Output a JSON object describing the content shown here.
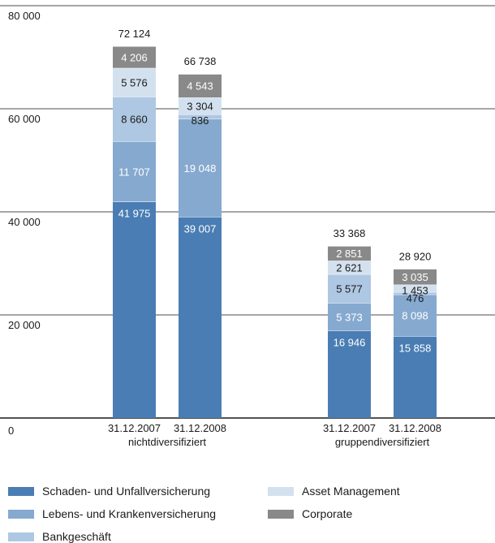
{
  "chart_data": {
    "type": "bar",
    "stacked": true,
    "ylim": [
      0,
      80000
    ],
    "yticks": [
      "0",
      "20 000",
      "40 000",
      "60 000",
      "80 000"
    ],
    "ytick_values": [
      0,
      20000,
      40000,
      60000,
      80000
    ],
    "grid": true,
    "categories": [
      "31.12.2007",
      "31.12.2008",
      "31.12.2007",
      "31.12.2008"
    ],
    "groups": [
      {
        "label": "nichtdiversifiziert",
        "members": [
          0,
          1
        ]
      },
      {
        "label": "gruppendiversifiziert",
        "members": [
          2,
          3
        ]
      }
    ],
    "series": [
      {
        "name": "Schaden- und Unfallversicherung",
        "color": "#4a7db3",
        "label_color": "#ffffff",
        "values": [
          41975,
          39007,
          16946,
          15858
        ],
        "labels": [
          "41 975",
          "39 007",
          "16 946",
          "15 858"
        ]
      },
      {
        "name": "Lebens- und Krankenversicherung",
        "color": "#86a9cf",
        "label_color": "#ffffff",
        "values": [
          11707,
          19048,
          5373,
          8098
        ],
        "labels": [
          "11 707",
          "19 048",
          "5 373",
          "8 098"
        ]
      },
      {
        "name": "Bankgeschäft",
        "color": "#aec7e2",
        "label_color": "#1a1a1a",
        "values": [
          8660,
          836,
          5577,
          476
        ],
        "labels": [
          "8 660",
          "836",
          "5 577",
          "476"
        ]
      },
      {
        "name": "Asset Management",
        "color": "#d3e1ef",
        "label_color": "#1a1a1a",
        "values": [
          5576,
          3304,
          2621,
          1453
        ],
        "labels": [
          "5 576",
          "3 304",
          "2 621",
          "1 453"
        ]
      },
      {
        "name": "Corporate",
        "color": "#898989",
        "label_color": "#ffffff",
        "values": [
          4206,
          4543,
          2851,
          3035
        ],
        "labels": [
          "4 206",
          "4 543",
          "2 851",
          "3 035"
        ]
      }
    ],
    "totals": [
      72124,
      66738,
      33368,
      28920
    ],
    "total_labels": [
      "72 124",
      "66 738",
      "33 368",
      "28 920"
    ],
    "legend": {
      "placement": "bottom"
    }
  }
}
